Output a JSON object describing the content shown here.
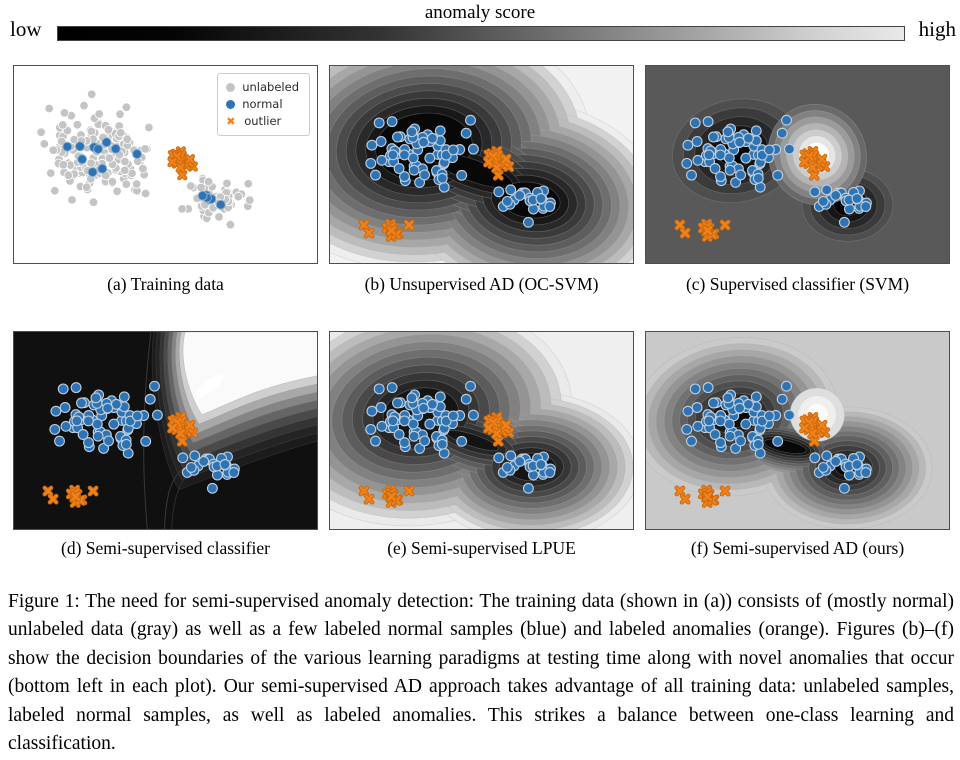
{
  "colorbar": {
    "title": "anomaly score",
    "low_label": "low",
    "high_label": "high"
  },
  "legend": {
    "items": [
      {
        "label": "unlabeled",
        "marker": "circle",
        "color": "#c4c4c4"
      },
      {
        "label": "normal",
        "marker": "circle",
        "color": "#2e74b4"
      },
      {
        "label": "outlier",
        "marker": "x-cross",
        "color": "#f28118"
      }
    ]
  },
  "panels": [
    {
      "id": "a",
      "caption": "(a) Training data",
      "shading": "no score map; plain white scatter plot of the training data"
    },
    {
      "id": "b",
      "caption": "(b) Unsupervised AD (OC-SVM)",
      "shading": "single dark low-score basin enclosing both normal clusters and the labeled outliers; score rises smoothly toward the plot edges"
    },
    {
      "id": "c",
      "caption": "(c) Supervised classifier (SVM)",
      "shading": "uniform mid-gray background; two small dark low-score blobs on the normal clusters and a bright high-score blob on the labeled outliers; novel anomalies bottom-left are not flagged"
    },
    {
      "id": "d",
      "caption": "(d) Semi-supervised classifier",
      "shading": "almost everything black (low score); a bright high-score wedge opens from the labeled outliers toward the top-right corner"
    },
    {
      "id": "e",
      "caption": "(e) Semi-supervised LPUE",
      "shading": "two dark low-score basins, one per normal cluster, joined by a medium-dark ridge; score rises toward the edges"
    },
    {
      "id": "f",
      "caption": "(f) Semi-supervised AD (ours)",
      "shading": "light gray background; compact dark low-score basins tight around each normal cluster and a small bright high-score spot on the labeled outliers"
    }
  ],
  "figure_caption": "Figure 1: The need for semi-supervised anomaly detection: The training data (shown in (a)) consists of (mostly normal) unlabeled data (gray) as well as a few labeled normal samples (blue) and labeled anomalies (orange). Figures (b)–(f) show the decision boundaries of the various learning paradigms at testing time along with novel anomalies that occur (bottom left in each plot). Our semi-supervised AD approach takes advantage of all training data: unlabeled samples, labeled normal samples, as well as labeled anomalies. This strikes a balance between one-class learning and classification.",
  "colors": {
    "blue": "#2e74b4",
    "blue_edge_a": "#8fb2cf",
    "blue_edge_test": "#c2cfdb",
    "orange": "#f28118",
    "orange_edge": "#c96a10",
    "gray_point": "#c4c4c4",
    "panel_border": "#4e4e4e"
  },
  "chart_data": {
    "type": "scatter",
    "title": "anomaly score",
    "coords": "fractions of panel width/height, origin top-left, y increasing downward",
    "colorbar_range": [
      "low",
      "high"
    ],
    "clusters": {
      "unlabeled_large": {
        "center": [
          0.29,
          0.45
        ],
        "std": [
          0.082,
          0.105
        ],
        "n": 170
      },
      "unlabeled_small": {
        "center": [
          0.665,
          0.685
        ],
        "std": [
          0.055,
          0.05
        ],
        "n": 52
      },
      "labeled_normal_large": {
        "center": [
          0.3,
          0.46
        ],
        "std": [
          0.045,
          0.05
        ],
        "n": 10
      },
      "labeled_normal_small": {
        "center": [
          0.655,
          0.67
        ],
        "std": [
          0.024,
          0.03
        ],
        "n": 6
      },
      "labeled_outliers": {
        "center": [
          0.555,
          0.485
        ],
        "std": [
          0.02,
          0.028
        ],
        "n": 18
      },
      "novel_anomalies_cluster": {
        "center": [
          0.205,
          0.815
        ],
        "std": [
          0.014,
          0.02
        ],
        "n": 11
      },
      "novel_anomalies_singles": [
        [
          0.112,
          0.807
        ],
        [
          0.129,
          0.848
        ],
        [
          0.261,
          0.807
        ]
      ],
      "test_normal_large": {
        "center": [
          0.3,
          0.44
        ],
        "std": [
          0.075,
          0.09
        ],
        "n": 68
      },
      "test_normal_small": {
        "center": [
          0.67,
          0.69
        ],
        "std": [
          0.048,
          0.042
        ],
        "n": 26
      }
    },
    "panel_point_sets": {
      "a": [
        "unlabeled_large",
        "unlabeled_small",
        "labeled_normal_large",
        "labeled_normal_small",
        "labeled_outliers"
      ],
      "b_to_f": [
        "test_normal_large",
        "test_normal_small",
        "labeled_outliers",
        "novel_anomalies_cluster",
        "novel_anomalies_singles"
      ]
    }
  }
}
